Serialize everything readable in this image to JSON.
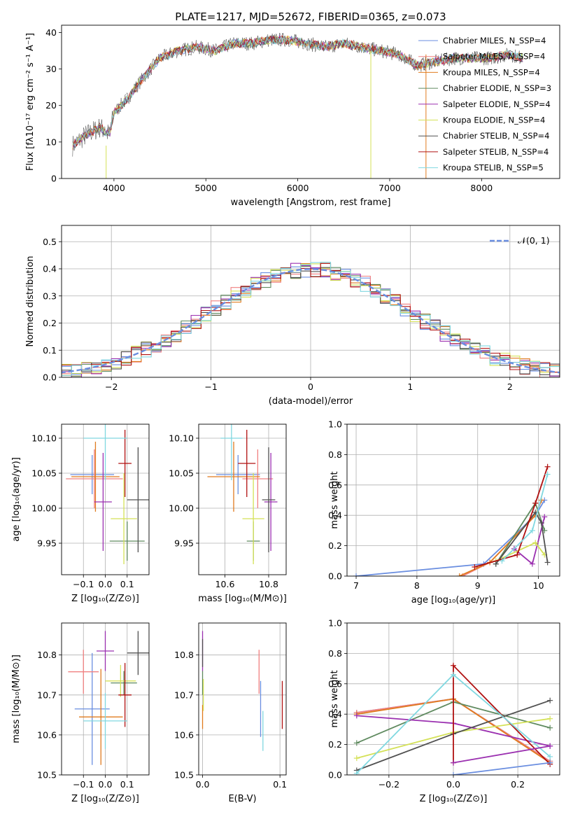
{
  "colors": {
    "chab_miles": "#6a8ee0",
    "salp_miles": "#f08080",
    "krou_miles": "#e07b1f",
    "chab_elodie": "#5f8a5f",
    "salp_elodie": "#9b30b0",
    "krou_elodie": "#d4e157",
    "chab_stelib": "#505050",
    "salp_stelib": "#b01010",
    "krou_stelib": "#80d8e0",
    "normal": "#6a8ee0"
  },
  "chart_data": [
    {
      "id": "spectrum",
      "type": "line",
      "title": "PLATE=1217, MJD=52672, FIBERID=0365, z=0.073",
      "xlabel": "wavelength [Angstrom, rest frame]",
      "ylabel": "Flux [fλ10⁻¹⁷ erg cm⁻² s⁻¹ A⁻¹]",
      "xlim": [
        3430,
        8850
      ],
      "ylim": [
        0,
        42
      ],
      "xticks": [
        "4000",
        "5000",
        "6000",
        "7000",
        "8000"
      ],
      "yticks": [
        "0",
        "10",
        "20",
        "30",
        "40"
      ],
      "legend_position": "top-right",
      "continuum": {
        "x": [
          3550,
          3700,
          3850,
          3950,
          4000,
          4150,
          4300,
          4500,
          4700,
          4900,
          5100,
          5300,
          5500,
          5700,
          5900,
          6100,
          6300,
          6500,
          6700,
          6900,
          7100,
          7300,
          7500,
          7700,
          7900,
          8100,
          8300,
          8450
        ],
        "y": [
          9,
          12,
          14,
          12,
          18,
          22,
          27,
          33,
          35,
          36,
          35,
          37,
          37,
          38,
          38,
          37,
          36,
          37,
          36,
          35,
          34,
          31,
          32,
          33,
          33,
          33,
          34,
          33
        ]
      },
      "series": [
        {
          "name": "Chabrier MILES, N_SSP=4",
          "color_key": "chab_miles"
        },
        {
          "name": "Salpeter MILES, N_SSP=4",
          "color_key": "salp_miles"
        },
        {
          "name": "Kroupa MILES, N_SSP=4",
          "color_key": "krou_miles"
        },
        {
          "name": "Chabrier ELODIE, N_SSP=3",
          "color_key": "chab_elodie"
        },
        {
          "name": "Salpeter ELODIE, N_SSP=4",
          "color_key": "salp_elodie"
        },
        {
          "name": "Kroupa ELODIE, N_SSP=4",
          "color_key": "krou_elodie"
        },
        {
          "name": "Chabrier STELIB, N_SSP=4",
          "color_key": "chab_stelib"
        },
        {
          "name": "Salpeter STELIB, N_SSP=4",
          "color_key": "salp_stelib"
        },
        {
          "name": "Kroupa STELIB, N_SSP=5",
          "color_key": "krou_stelib"
        }
      ]
    },
    {
      "id": "residuals",
      "type": "line",
      "title": "",
      "xlabel": "(data-model)/error",
      "ylabel": "Normed distribution",
      "xlim": [
        -2.5,
        2.5
      ],
      "ylim": [
        0,
        0.56
      ],
      "xticks": [
        "−2",
        "−1",
        "0",
        "1",
        "2"
      ],
      "yticks": [
        "0.0",
        "0.1",
        "0.2",
        "0.3",
        "0.4",
        "0.5"
      ],
      "grid": true,
      "legend_position": "top-right",
      "legend": "𝒩(0, 1)",
      "hist_bin_width": 0.1,
      "hist_series_colors": [
        "chab_miles",
        "salp_miles",
        "krou_miles",
        "chab_elodie",
        "salp_elodie",
        "krou_elodie",
        "chab_stelib",
        "salp_stelib",
        "krou_stelib"
      ]
    },
    {
      "id": "age_vs_Z",
      "type": "scatter",
      "xlabel": "Z [log₁₀(Z/Z⊙)]",
      "ylabel": "age  [log₁₀(age/yr)]",
      "xlim": [
        -0.2,
        0.2
      ],
      "ylim": [
        9.905,
        10.12
      ],
      "xticks": [
        "−0.1",
        "0.0",
        "0.1"
      ],
      "yticks": [
        "9.95",
        "10.00",
        "10.05",
        "10.10"
      ],
      "grid": true,
      "points": [
        {
          "c": "chab_miles",
          "x": -0.06,
          "y": 10.048,
          "xe": 0.1,
          "ye": 0.028
        },
        {
          "c": "salp_miles",
          "x": -0.05,
          "y": 10.042,
          "xe": 0.13,
          "ye": 0.042
        },
        {
          "c": "krou_miles",
          "x": -0.045,
          "y": 10.045,
          "xe": 0.11,
          "ye": 0.05
        },
        {
          "c": "chab_elodie",
          "x": 0.1,
          "y": 9.953,
          "xe": 0.08,
          "ye": 0.028
        },
        {
          "c": "salp_elodie",
          "x": -0.01,
          "y": 10.009,
          "xe": 0.04,
          "ye": 0.07
        },
        {
          "c": "krou_elodie",
          "x": 0.085,
          "y": 9.985,
          "xe": 0.06,
          "ye": 0.065
        },
        {
          "c": "chab_stelib",
          "x": 0.15,
          "y": 10.012,
          "xe": 0.05,
          "ye": 0.075
        },
        {
          "c": "salp_stelib",
          "x": 0.09,
          "y": 10.064,
          "xe": 0.03,
          "ye": 0.048
        },
        {
          "c": "krou_stelib",
          "x": 0.0,
          "y": 10.1,
          "xe": 0.1,
          "ye": 0.06
        }
      ]
    },
    {
      "id": "age_vs_mass",
      "type": "scatter",
      "xlabel": "mass [log₁₀(M/M⊙)]",
      "ylabel": "",
      "xlim": [
        10.48,
        10.88
      ],
      "ylim": [
        9.905,
        10.12
      ],
      "xticks": [
        "10.6",
        "10.8"
      ],
      "yticks": [
        "9.95",
        "10.00",
        "10.05",
        "10.10"
      ],
      "grid": true,
      "points": [
        {
          "c": "chab_miles",
          "x": 10.66,
          "y": 10.048,
          "xe": 0.1,
          "ye": 0.028
        },
        {
          "c": "salp_miles",
          "x": 10.75,
          "y": 10.042,
          "xe": 0.07,
          "ye": 0.042
        },
        {
          "c": "krou_miles",
          "x": 10.64,
          "y": 10.045,
          "xe": 0.12,
          "ye": 0.05
        },
        {
          "c": "chab_elodie",
          "x": 10.73,
          "y": 9.953,
          "xe": 0.03,
          "ye": 0.028
        },
        {
          "c": "salp_elodie",
          "x": 10.81,
          "y": 10.009,
          "xe": 0.03,
          "ye": 0.07
        },
        {
          "c": "krou_elodie",
          "x": 10.73,
          "y": 9.985,
          "xe": 0.05,
          "ye": 0.065
        },
        {
          "c": "chab_stelib",
          "x": 10.8,
          "y": 10.012,
          "xe": 0.03,
          "ye": 0.075
        },
        {
          "c": "salp_stelib",
          "x": 10.7,
          "y": 10.064,
          "xe": 0.04,
          "ye": 0.048
        },
        {
          "c": "krou_stelib",
          "x": 10.63,
          "y": 10.1,
          "xe": 0.05,
          "ye": 0.06
        }
      ]
    },
    {
      "id": "weight_vs_age",
      "type": "line",
      "xlabel": "age  [log₁₀(age/yr)]",
      "ylabel": "mass weight",
      "xlim": [
        6.85,
        10.35
      ],
      "ylim": [
        0,
        1
      ],
      "xticks": [
        "7",
        "8",
        "9",
        "10"
      ],
      "yticks": [
        "0.0",
        "0.2",
        "0.4",
        "0.6",
        "0.8",
        "1.0"
      ],
      "grid": true,
      "series": [
        {
          "c": "chab_miles",
          "x": [
            7.0,
            9.1,
            9.95,
            10.1
          ],
          "y": [
            0.0,
            0.08,
            0.4,
            0.5
          ]
        },
        {
          "c": "salp_miles",
          "x": [
            8.75,
            9.2,
            9.95,
            10.05
          ],
          "y": [
            0.0,
            0.09,
            0.4,
            0.5
          ]
        },
        {
          "c": "krou_miles",
          "x": [
            8.7,
            9.2,
            9.95,
            10.05
          ],
          "y": [
            0.0,
            0.09,
            0.4,
            0.5
          ]
        },
        {
          "c": "chab_elodie",
          "x": [
            9.3,
            9.95,
            10.1
          ],
          "y": [
            0.08,
            0.48,
            0.3
          ]
        },
        {
          "c": "salp_elodie",
          "x": [
            9.6,
            9.9,
            10.1
          ],
          "y": [
            0.18,
            0.08,
            0.39
          ]
        },
        {
          "c": "krou_elodie",
          "x": [
            9.3,
            9.95,
            10.1
          ],
          "y": [
            0.1,
            0.22,
            0.14
          ]
        },
        {
          "c": "chab_stelib",
          "x": [
            9.3,
            9.95,
            10.05,
            10.15
          ],
          "y": [
            0.08,
            0.42,
            0.35,
            0.09
          ]
        },
        {
          "c": "salp_stelib",
          "x": [
            8.95,
            9.65,
            9.95,
            10.15
          ],
          "y": [
            0.06,
            0.14,
            0.48,
            0.72
          ]
        },
        {
          "c": "krou_stelib",
          "x": [
            9.4,
            9.9,
            10.15
          ],
          "y": [
            0.1,
            0.3,
            0.67
          ]
        }
      ]
    },
    {
      "id": "mass_vs_Z",
      "type": "scatter",
      "xlabel": "Z [log₁₀(Z/Z⊙)]",
      "ylabel": "mass [log₁₀(M/M⊙)]",
      "xlim": [
        -0.2,
        0.2
      ],
      "ylim": [
        10.5,
        10.88
      ],
      "xticks": [
        "−0.1",
        "0.0",
        "0.1"
      ],
      "yticks": [
        "10.5",
        "10.6",
        "10.7",
        "10.8"
      ],
      "grid": true,
      "points": [
        {
          "c": "chab_miles",
          "x": -0.06,
          "y": 10.665,
          "xe": 0.08,
          "ye": 0.14
        },
        {
          "c": "salp_miles",
          "x": -0.1,
          "y": 10.758,
          "xe": 0.07,
          "ye": 0.055
        },
        {
          "c": "krou_miles",
          "x": -0.02,
          "y": 10.645,
          "xe": 0.1,
          "ye": 0.12
        },
        {
          "c": "chab_elodie",
          "x": 0.085,
          "y": 10.73,
          "xe": 0.06,
          "ye": 0.03
        },
        {
          "c": "salp_elodie",
          "x": 0.0,
          "y": 10.81,
          "xe": 0.04,
          "ye": 0.05
        },
        {
          "c": "krou_elodie",
          "x": 0.07,
          "y": 10.735,
          "xe": 0.07,
          "ye": 0.04
        },
        {
          "c": "chab_stelib",
          "x": 0.15,
          "y": 10.805,
          "xe": 0.05,
          "ye": 0.055
        },
        {
          "c": "salp_stelib",
          "x": 0.09,
          "y": 10.7,
          "xe": 0.03,
          "ye": 0.08
        },
        {
          "c": "krou_stelib",
          "x": 0.0,
          "y": 10.635,
          "xe": 0.1,
          "ye": 0.07
        }
      ]
    },
    {
      "id": "mass_vs_ebv",
      "type": "scatter",
      "xlabel": "E(B-V)",
      "ylabel": "",
      "xlim": [
        -0.005,
        0.108
      ],
      "ylim": [
        10.5,
        10.88
      ],
      "xticks": [
        "0.0",
        "0.1"
      ],
      "yticks": [
        "10.5",
        "10.6",
        "10.7",
        "10.8"
      ],
      "grid": true,
      "points": [
        {
          "c": "chab_miles",
          "x": 0.075,
          "y": 10.665,
          "xe": 0,
          "ye": 0.07
        },
        {
          "c": "salp_miles",
          "x": 0.073,
          "y": 10.758,
          "xe": 0,
          "ye": 0.055
        },
        {
          "c": "krou_miles",
          "x": 0.0,
          "y": 10.645,
          "xe": 0,
          "ye": 0.03
        },
        {
          "c": "chab_elodie",
          "x": 0.0,
          "y": 10.73,
          "xe": 0,
          "ye": 0.03
        },
        {
          "c": "salp_elodie",
          "x": 0.0,
          "y": 10.81,
          "xe": 0,
          "ye": 0.05
        },
        {
          "c": "krou_elodie",
          "x": 0.001,
          "y": 10.7,
          "xe": 0,
          "ye": 0.04
        },
        {
          "c": "chab_stelib",
          "x": 0.0,
          "y": 10.805,
          "xe": 0,
          "ye": 0.035
        },
        {
          "c": "salp_stelib",
          "x": 0.103,
          "y": 10.675,
          "xe": 0,
          "ye": 0.06
        },
        {
          "c": "krou_stelib",
          "x": 0.078,
          "y": 10.61,
          "xe": 0,
          "ye": 0.05
        }
      ]
    },
    {
      "id": "weight_vs_Z",
      "type": "line",
      "xlabel": "Z [log₁₀(Z/Z⊙)]",
      "ylabel": "mass weight",
      "xlim": [
        -0.33,
        0.33
      ],
      "ylim": [
        0,
        1
      ],
      "xticks": [
        "−0.2",
        "0.0",
        "0.2"
      ],
      "yticks": [
        "0.0",
        "0.2",
        "0.4",
        "0.6",
        "0.8",
        "1.0"
      ],
      "grid": true,
      "series": [
        {
          "c": "chab_miles",
          "x": [
            -0.3,
            0.0,
            0.3
          ],
          "y": [
            0.41,
            0.5,
            0.09
          ]
        },
        {
          "c": "salp_miles",
          "x": [
            -0.3,
            0.0,
            0.3
          ],
          "y": [
            0.41,
            0.5,
            0.09
          ]
        },
        {
          "c": "krou_miles",
          "x": [
            -0.3,
            0.0,
            0.3
          ],
          "y": [
            0.4,
            0.5,
            0.08
          ]
        },
        {
          "c": "chab_elodie",
          "x": [
            -0.3,
            0.0,
            0.3
          ],
          "y": [
            0.21,
            0.48,
            0.31
          ]
        },
        {
          "c": "salp_elodie",
          "x": [
            -0.3,
            0.0,
            0.3
          ],
          "y": [
            0.39,
            0.34,
            0.19
          ]
        },
        {
          "c": "krou_elodie",
          "x": [
            -0.3,
            0.0,
            0.3
          ],
          "y": [
            0.11,
            0.28,
            0.37
          ]
        },
        {
          "c": "chab_stelib",
          "x": [
            -0.3,
            0.0,
            0.3
          ],
          "y": [
            0.03,
            0.27,
            0.49
          ]
        },
        {
          "c": "salp_stelib",
          "x": [
            0.0,
            0.0,
            0.3
          ],
          "y": [
            0.08,
            0.72,
            0.07
          ]
        },
        {
          "c": "krou_stelib",
          "x": [
            -0.3,
            0.0,
            0.3
          ],
          "y": [
            0.01,
            0.66,
            0.12
          ]
        },
        {
          "c": "chab_miles",
          "x": [
            0.0,
            0.3
          ],
          "y": [
            0.0,
            0.08
          ]
        },
        {
          "c": "salp_elodie",
          "x": [
            0.0,
            0.3
          ],
          "y": [
            0.08,
            0.19
          ]
        }
      ]
    }
  ]
}
